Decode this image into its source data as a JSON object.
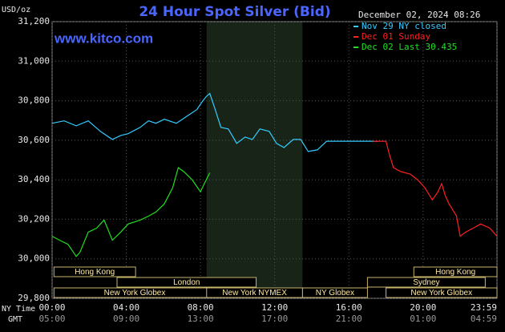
{
  "chart_data": {
    "type": "line",
    "title": "24 Hour Spot Silver (Bid)",
    "timestamp": "December 02, 2024 08:26",
    "watermark": "www.kitco.com",
    "y_label": "USD/oz",
    "x_label": "NY Time",
    "x2_label": "GMT",
    "xlim": [
      0,
      23.983
    ],
    "ylim": [
      29.8,
      31.2
    ],
    "grid": true,
    "yticks": [
      {
        "value": 29.8,
        "label": "29,800"
      },
      {
        "value": 30.0,
        "label": "30,000"
      },
      {
        "value": 30.2,
        "label": "30,200"
      },
      {
        "value": 30.4,
        "label": "30,400"
      },
      {
        "value": 30.6,
        "label": "30,600"
      },
      {
        "value": 30.8,
        "label": "30,800"
      },
      {
        "value": 31.0,
        "label": "31,000"
      },
      {
        "value": 31.2,
        "label": "31,200"
      }
    ],
    "xticks": [
      {
        "value": 0,
        "label": "00:00"
      },
      {
        "value": 4,
        "label": "04:00"
      },
      {
        "value": 8,
        "label": "08:00"
      },
      {
        "value": 12,
        "label": "12:00"
      },
      {
        "value": 16,
        "label": "16:00"
      },
      {
        "value": 20,
        "label": "20:00"
      },
      {
        "value": 23.983,
        "label": "23:59"
      }
    ],
    "x2ticks": [
      {
        "value": 0,
        "label": "05:00"
      },
      {
        "value": 4,
        "label": "09:00"
      },
      {
        "value": 8,
        "label": "13:00"
      },
      {
        "value": 12,
        "label": "17:00"
      },
      {
        "value": 16,
        "label": "21:00"
      },
      {
        "value": 20,
        "label": "01:00"
      },
      {
        "value": 23.983,
        "label": "04:59"
      }
    ],
    "sessions": [
      {
        "name": "Hong Kong",
        "start": 0.1,
        "end": 4.5,
        "row": 0
      },
      {
        "name": "Hong Kong",
        "start": 19.5,
        "end": 23.983,
        "row": 0
      },
      {
        "name": "London",
        "start": 3.5,
        "end": 11.0,
        "row": 1
      },
      {
        "name": "Sydney",
        "start": 17.0,
        "end": 23.35,
        "row": 1
      },
      {
        "name": "New York Globex",
        "start": 0.1,
        "end": 8.8,
        "row": 2
      },
      {
        "name": "New York NYMEX",
        "start": 8.33,
        "end": 13.5,
        "row": 2,
        "shaded": true
      },
      {
        "name": "NY Globex",
        "start": 13.5,
        "end": 17.0,
        "row": 2
      },
      {
        "name": "New York Globex",
        "start": 18.0,
        "end": 23.983,
        "row": 2
      }
    ],
    "series": [
      {
        "name": "Nov 29 NY closed",
        "color": "#33ccff",
        "x": [
          0.0,
          0.65,
          1.3,
          1.95,
          2.6,
          3.25,
          3.7,
          4.1,
          4.75,
          5.2,
          5.6,
          6.05,
          6.7,
          7.35,
          7.8,
          8.1,
          8.3,
          8.5,
          8.75,
          9.1,
          9.5,
          9.95,
          10.4,
          10.8,
          11.2,
          11.7,
          12.1,
          12.5,
          13.0,
          13.4,
          13.8,
          14.3,
          14.8,
          17.6
        ],
        "values": [
          30.686,
          30.698,
          30.673,
          30.698,
          30.645,
          30.604,
          30.624,
          30.633,
          30.665,
          30.698,
          30.686,
          30.706,
          30.686,
          30.727,
          30.755,
          30.796,
          30.82,
          30.837,
          30.767,
          30.665,
          30.657,
          30.584,
          30.616,
          30.604,
          30.657,
          30.645,
          30.584,
          30.563,
          30.604,
          30.604,
          30.543,
          30.551,
          30.595,
          30.595
        ]
      },
      {
        "name": "Dec 01 Sunday",
        "color": "#ff2020",
        "x": [
          17.3,
          18.0,
          18.2,
          18.4,
          18.8,
          19.3,
          19.7,
          20.1,
          20.5,
          20.8,
          21.0,
          21.2,
          21.4,
          21.8,
          22.0,
          22.3,
          22.7,
          23.1,
          23.6,
          23.983
        ],
        "values": [
          30.595,
          30.595,
          30.522,
          30.461,
          30.441,
          30.429,
          30.4,
          30.359,
          30.298,
          30.339,
          30.38,
          30.318,
          30.278,
          30.216,
          30.114,
          30.135,
          30.155,
          30.176,
          30.155,
          30.114
        ]
      },
      {
        "name": "Dec 02 Last 30.435",
        "color": "#20e020",
        "x": [
          0.0,
          0.4,
          0.86,
          1.3,
          1.5,
          1.95,
          2.4,
          2.8,
          3.25,
          3.7,
          4.1,
          4.75,
          5.2,
          5.6,
          6.05,
          6.5,
          6.8,
          7.1,
          7.55,
          8.0,
          8.2,
          8.5
        ],
        "values": [
          30.114,
          30.094,
          30.073,
          30.012,
          30.033,
          30.135,
          30.155,
          30.196,
          30.094,
          30.135,
          30.176,
          30.196,
          30.216,
          30.237,
          30.278,
          30.359,
          30.461,
          30.441,
          30.4,
          30.339,
          30.38,
          30.435
        ]
      }
    ]
  }
}
